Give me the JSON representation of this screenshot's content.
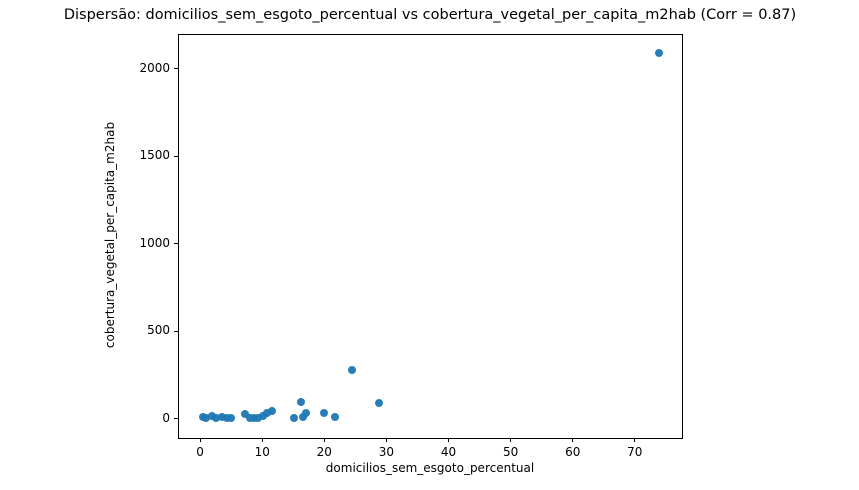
{
  "chart_data": {
    "type": "scatter",
    "title": "Dispersão: domicilios_sem_esgoto_percentual vs cobertura_vegetal_per_capita_m2hab (Corr = 0.87)",
    "xlabel": "domicilios_sem_esgoto_percentual",
    "ylabel": "cobertura_vegetal_per_capita_m2hab",
    "correlation": 0.87,
    "xlim": [
      -3.4,
      77.6
    ],
    "ylim": [
      -110,
      2192
    ],
    "xticks": [
      0,
      10,
      20,
      30,
      40,
      50,
      60,
      70
    ],
    "yticks": [
      0,
      500,
      1000,
      1500,
      2000
    ],
    "grid": false,
    "legend_position": "none",
    "marker_color": "#1f77b4",
    "axis_color": "#000000",
    "background_color": "#ffffff",
    "points": [
      [
        0.4,
        8
      ],
      [
        1.0,
        2
      ],
      [
        1.9,
        15
      ],
      [
        2.6,
        5
      ],
      [
        3.5,
        12
      ],
      [
        4.3,
        2
      ],
      [
        5.0,
        4
      ],
      [
        7.3,
        25
      ],
      [
        8.0,
        4
      ],
      [
        8.7,
        2
      ],
      [
        9.4,
        6
      ],
      [
        10.1,
        15
      ],
      [
        10.8,
        30
      ],
      [
        11.5,
        42
      ],
      [
        15.1,
        4
      ],
      [
        16.2,
        95
      ],
      [
        16.5,
        8
      ],
      [
        17.1,
        34
      ],
      [
        19.9,
        34
      ],
      [
        21.8,
        8
      ],
      [
        24.4,
        280
      ],
      [
        28.8,
        92
      ],
      [
        73.9,
        2090
      ]
    ]
  }
}
